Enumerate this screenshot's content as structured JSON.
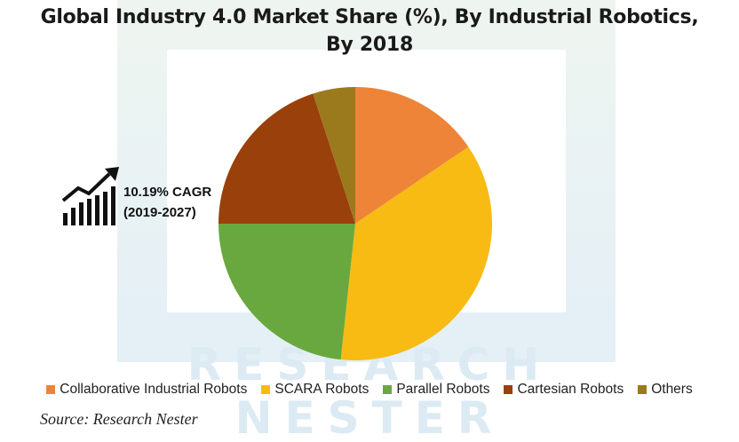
{
  "watermark": {
    "text_line1": "RESEARCH",
    "text_line2": "NESTER",
    "color": "#cfe3ef"
  },
  "chart_data": {
    "type": "pie",
    "title": "Global Industry 4.0 Market Share (%), By Industrial Robotics, By 2018",
    "title_lines": [
      "Global Industry 4.0 Market Share (%), By Industrial Robotics,",
      "By 2018"
    ],
    "slices": [
      {
        "name": "Collaborative Industrial Robots",
        "value": 15.5,
        "color": "#ee8437"
      },
      {
        "name": "SCARA Robots",
        "value": 36.2,
        "color": "#f7bb13"
      },
      {
        "name": "Parallel Robots",
        "value": 23.3,
        "color": "#69a83e"
      },
      {
        "name": "Cartesian Robots",
        "value": 20.0,
        "color": "#9a400a"
      },
      {
        "name": "Others",
        "value": 5.0,
        "color": "#9b7a1e"
      }
    ],
    "start_angle": "12 o'clock",
    "direction": "clockwise",
    "legend_position": "bottom"
  },
  "annotation": {
    "line1": "10.19% CAGR",
    "line2": "(2019-2027)",
    "icon": "growth-chart-icon"
  },
  "source": "Source: Research Nester"
}
